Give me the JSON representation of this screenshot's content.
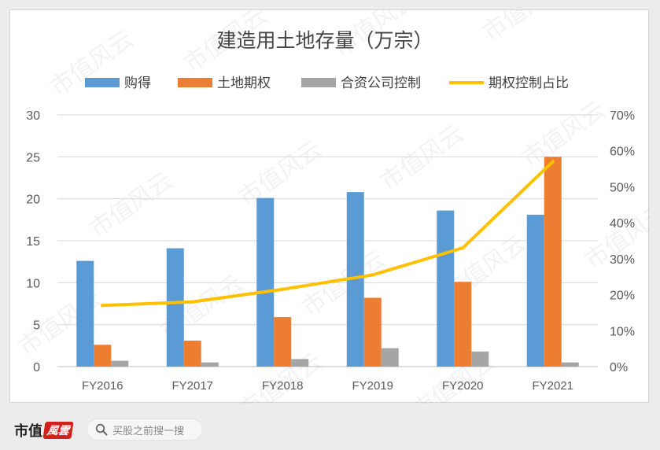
{
  "watermark_text": "市值风云",
  "footer": {
    "brand_text": "市值",
    "brand_badge_text": "風雲",
    "search_placeholder": "买股之前搜一搜"
  },
  "chart_data": {
    "type": "bar",
    "title": "建造用土地存量（万宗）",
    "categories": [
      "FY2016",
      "FY2017",
      "FY2018",
      "FY2019",
      "FY2020",
      "FY2021"
    ],
    "series": [
      {
        "name": "购得",
        "type": "bar",
        "axis": "left",
        "color": "#5b9bd5",
        "values": [
          12.6,
          14.1,
          20.1,
          20.8,
          18.6,
          18.1
        ]
      },
      {
        "name": "土地期权",
        "type": "bar",
        "axis": "left",
        "color": "#ed7d31",
        "values": [
          2.6,
          3.1,
          5.9,
          8.2,
          10.1,
          25.0
        ]
      },
      {
        "name": "合资公司控制",
        "type": "bar",
        "axis": "left",
        "color": "#a5a5a5",
        "values": [
          0.7,
          0.5,
          0.9,
          2.2,
          1.8,
          0.5
        ]
      },
      {
        "name": "期权控制占比",
        "type": "line",
        "axis": "right",
        "color": "#ffc000",
        "values": [
          0.17,
          0.18,
          0.215,
          0.255,
          0.33,
          0.57
        ]
      }
    ],
    "y_left": {
      "min": 0,
      "max": 30,
      "ticks": [
        "0",
        "5",
        "10",
        "15",
        "20",
        "25",
        "30"
      ]
    },
    "y_right": {
      "min": 0,
      "max": 0.7,
      "ticks": [
        "0%",
        "10%",
        "20%",
        "30%",
        "40%",
        "50%",
        "60%",
        "70%"
      ]
    },
    "grid": true,
    "legend_position": "top"
  }
}
